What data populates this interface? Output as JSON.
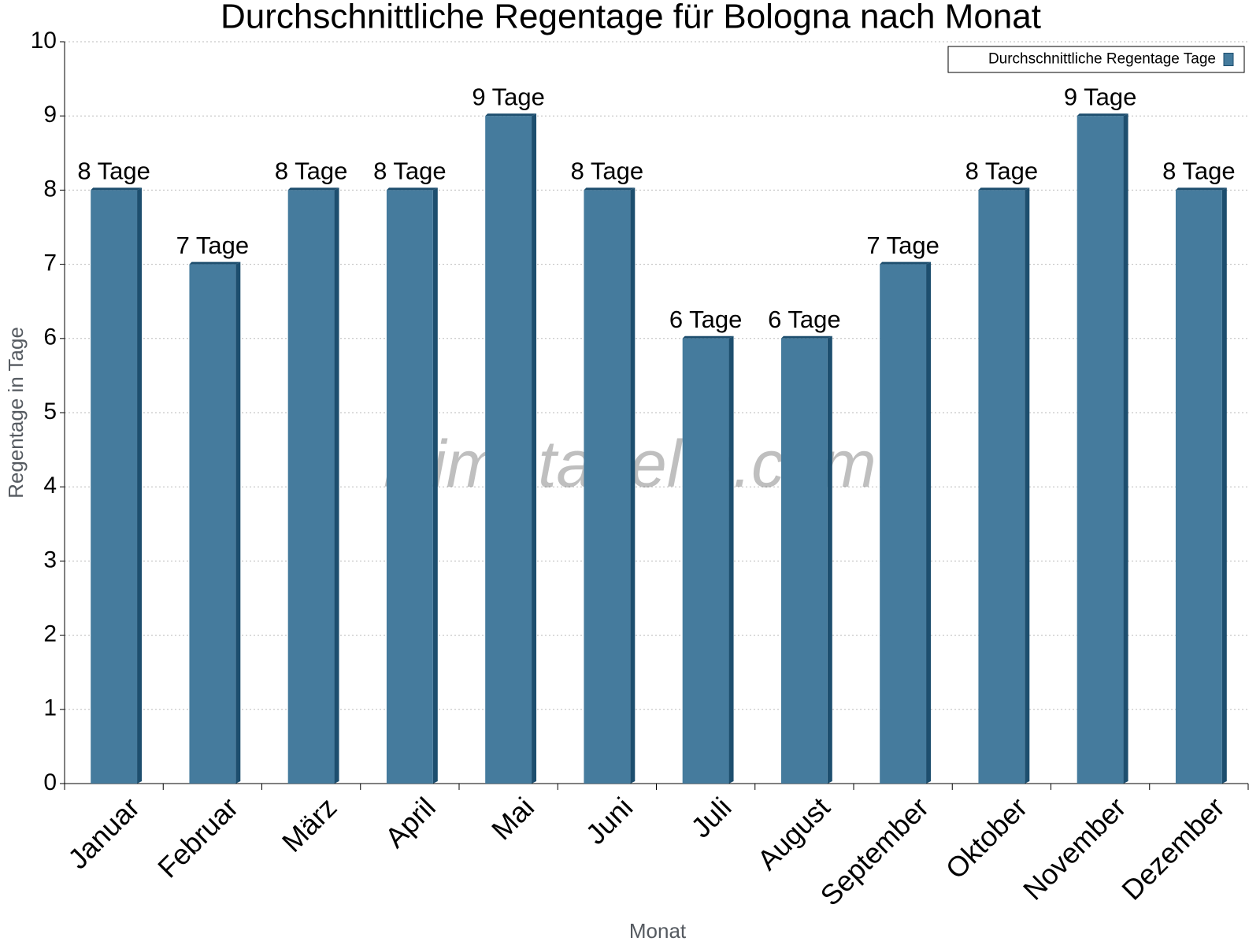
{
  "chart_data": {
    "type": "bar",
    "title": "Durchschnittliche Regentage für Bologna nach Monat",
    "xlabel": "Monat",
    "ylabel": "Regentage in Tage",
    "watermark": "klimatabelle.com",
    "categories": [
      "Januar",
      "Februar",
      "März",
      "April",
      "Mai",
      "Juni",
      "Juli",
      "August",
      "September",
      "Oktober",
      "November",
      "Dezember"
    ],
    "series": [
      {
        "name": "Durchschnittliche Regentage Tage",
        "color": "#457b9d",
        "values": [
          8,
          7,
          8,
          8,
          9,
          8,
          6,
          6,
          7,
          8,
          9,
          8
        ],
        "value_labels": [
          "8 Tage",
          "7 Tage",
          "8 Tage",
          "8 Tage",
          "9 Tage",
          "8 Tage",
          "6 Tage",
          "6 Tage",
          "7 Tage",
          "8 Tage",
          "9 Tage",
          "8 Tage"
        ]
      }
    ],
    "ylim": [
      0,
      10
    ],
    "yticks": [
      0,
      1,
      2,
      3,
      4,
      5,
      6,
      7,
      8,
      9,
      10
    ],
    "grid": true,
    "legend": "upper right"
  }
}
